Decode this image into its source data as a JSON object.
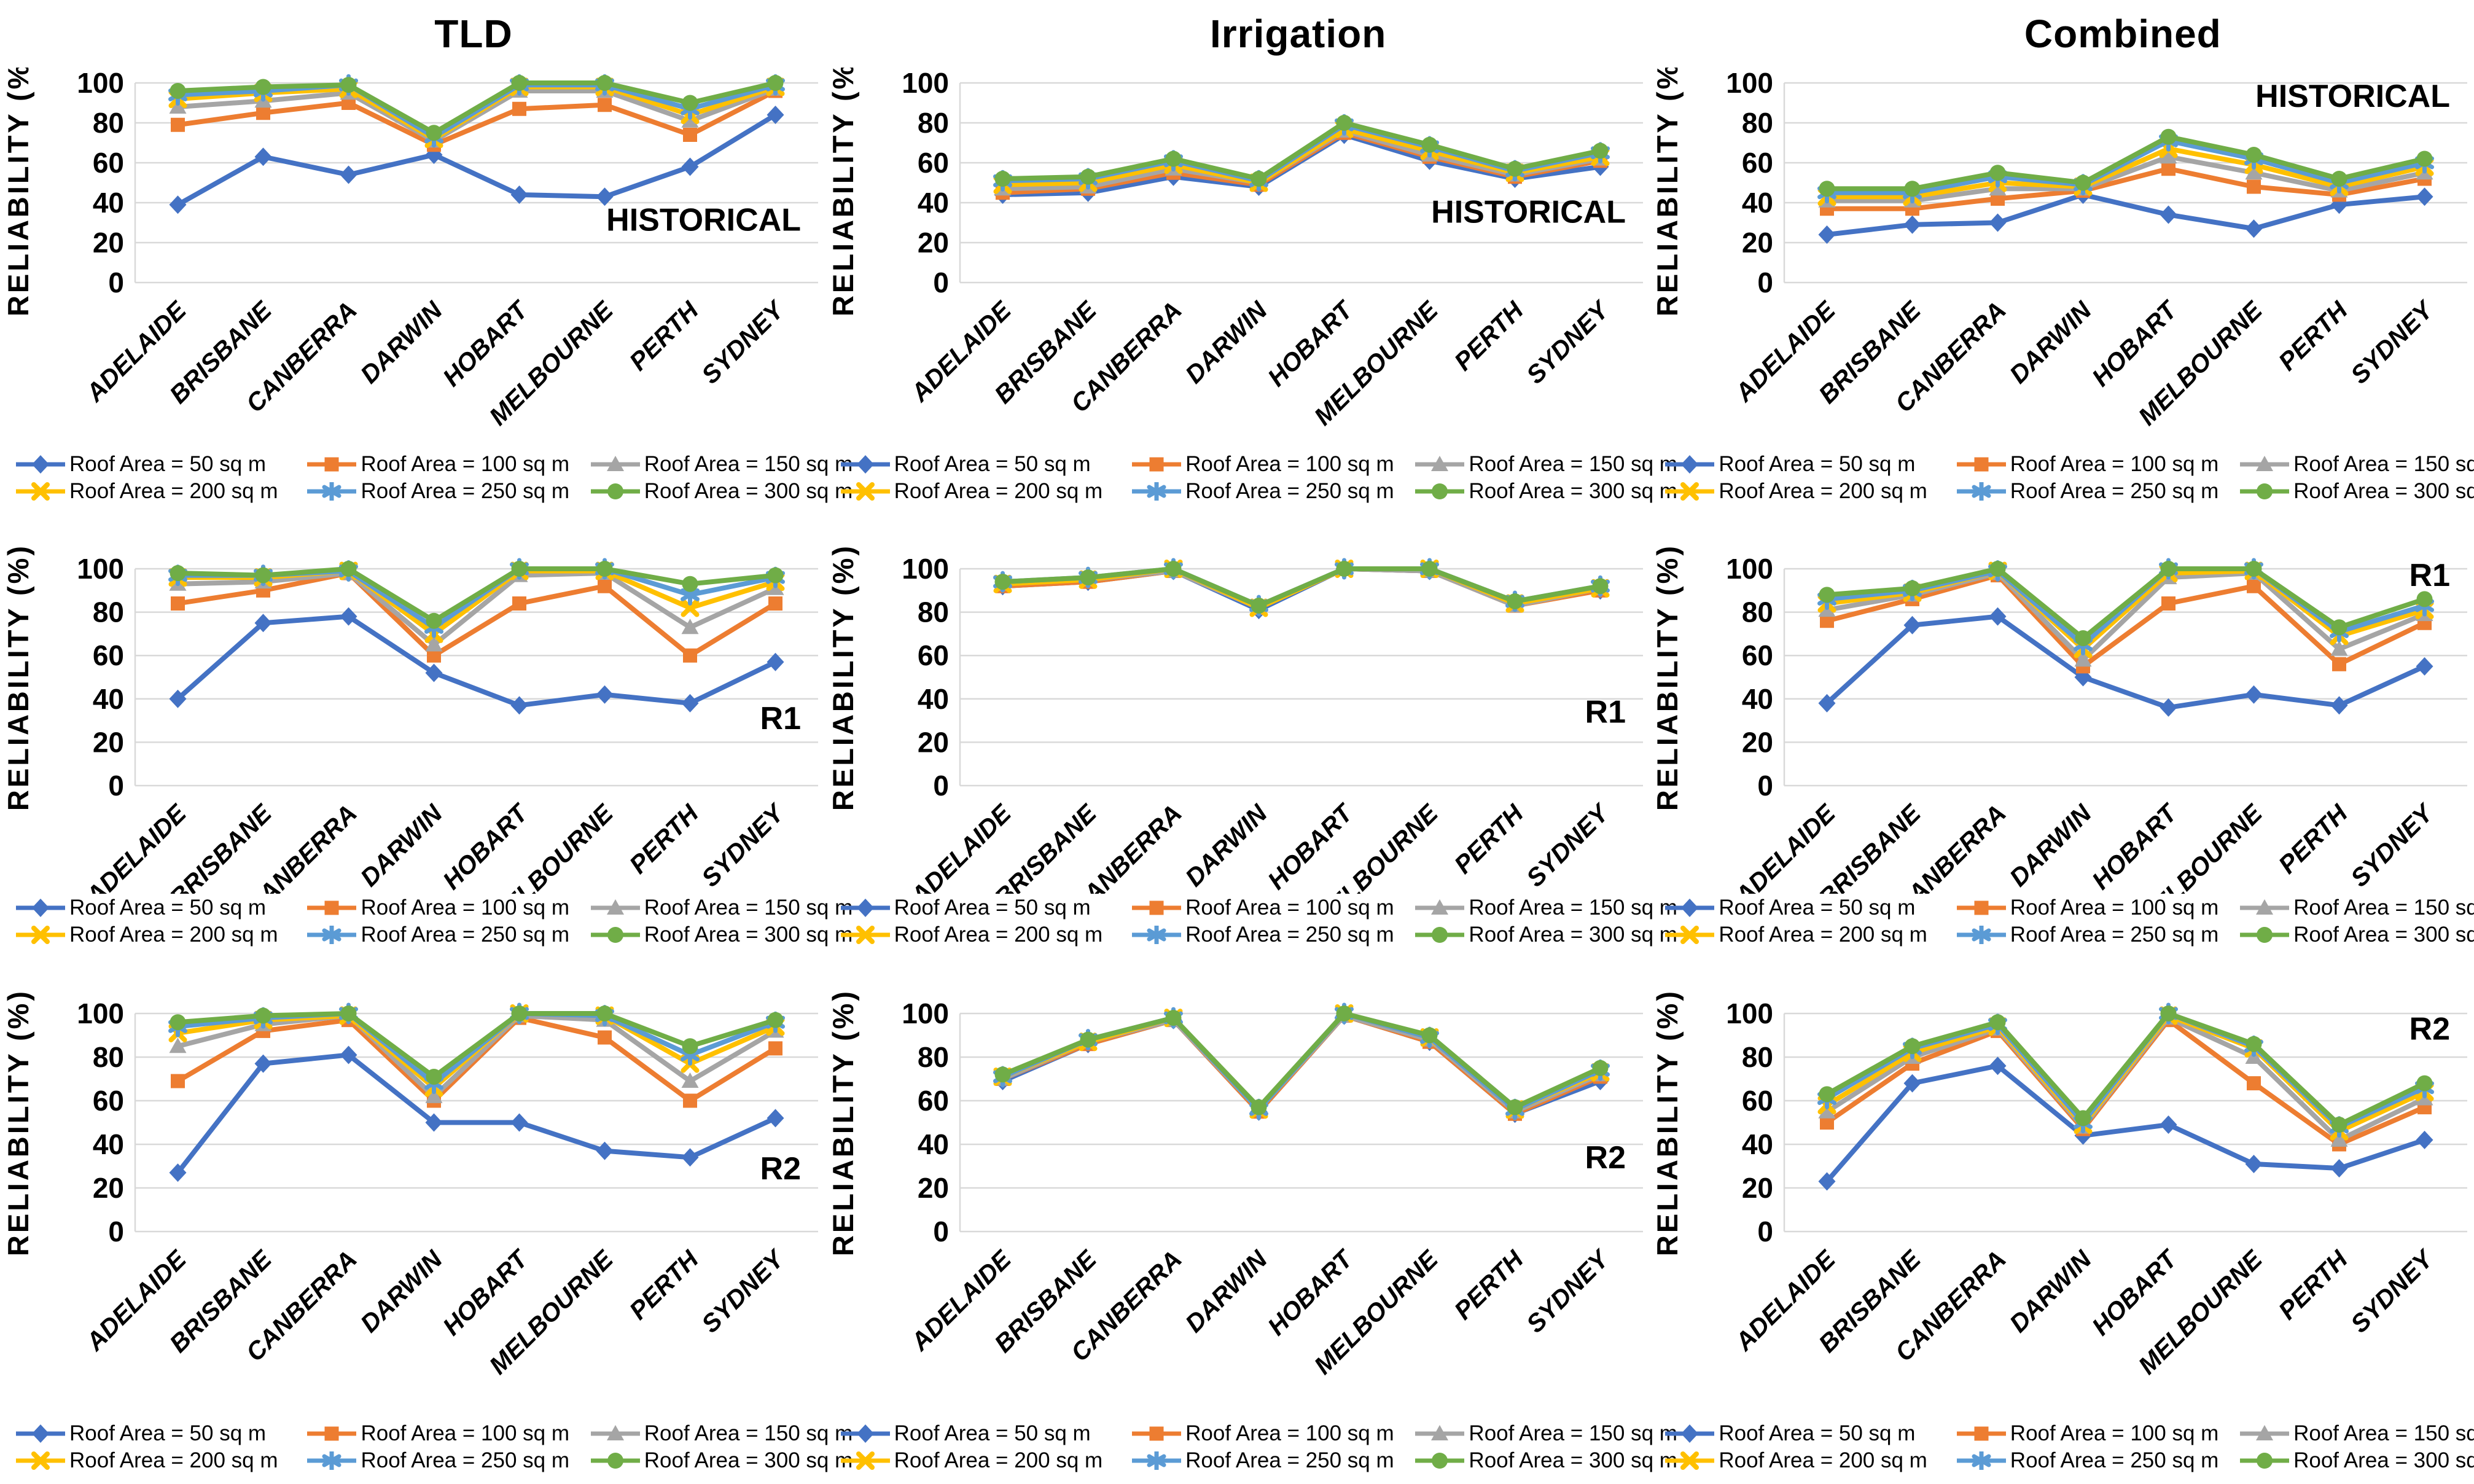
{
  "figure": {
    "column_titles": [
      "TLD",
      "Irrigation",
      "Combined"
    ],
    "scenario_labels": [
      "HISTORICAL",
      "R1",
      "R2"
    ]
  },
  "ylabel": "RELIABILITY (%)",
  "yticks": [
    0,
    20,
    40,
    60,
    80,
    100
  ],
  "categories": [
    "ADELAIDE",
    "BRISBANE",
    "CANBERRA",
    "DARWIN",
    "HOBART",
    "MELBOURNE",
    "PERTH",
    "SYDNEY"
  ],
  "legend": [
    {
      "label": "Roof Area = 50 sq m",
      "color": "#4472C4",
      "marker": "diamond"
    },
    {
      "label": "Roof Area = 100 sq m",
      "color": "#ED7D31",
      "marker": "square"
    },
    {
      "label": "Roof Area = 150 sq m",
      "color": "#A5A5A5",
      "marker": "triangle"
    },
    {
      "label": "Roof Area = 200 sq m",
      "color": "#FFC000",
      "marker": "x"
    },
    {
      "label": "Roof Area = 250 sq m",
      "color": "#5B9BD5",
      "marker": "asterisk"
    },
    {
      "label": "Roof Area = 300 sq m",
      "color": "#70AD47",
      "marker": "circle"
    }
  ],
  "grid_color": "#D9D9D9",
  "chart_data": [
    {
      "type": "line",
      "title": "TLD",
      "annotation": "HISTORICAL",
      "annotation_y": 26,
      "xlabel": "",
      "ylabel": "RELIABILITY (%)",
      "ylim": [
        0,
        100
      ],
      "grid": true,
      "series": [
        {
          "name": "Roof Area = 50 sq m",
          "values": [
            39,
            63,
            54,
            64,
            44,
            43,
            58,
            84
          ]
        },
        {
          "name": "Roof Area = 100 sq m",
          "values": [
            79,
            85,
            90,
            69,
            87,
            89,
            74,
            96
          ]
        },
        {
          "name": "Roof Area = 150 sq m",
          "values": [
            88,
            91,
            95,
            71,
            96,
            96,
            81,
            97
          ]
        },
        {
          "name": "Roof Area = 200 sq m",
          "values": [
            92,
            95,
            97,
            72,
            98,
            98,
            84,
            98
          ]
        },
        {
          "name": "Roof Area = 250 sq m",
          "values": [
            94,
            96,
            99,
            73,
            99,
            99,
            87,
            99
          ]
        },
        {
          "name": "Roof Area = 300 sq m",
          "values": [
            96,
            98,
            99,
            75,
            100,
            100,
            90,
            100
          ]
        }
      ]
    },
    {
      "type": "line",
      "title": "Irrigation",
      "annotation": "HISTORICAL",
      "annotation_y": 30,
      "xlabel": "",
      "ylabel": "RELIABILITY (%)",
      "ylim": [
        0,
        100
      ],
      "grid": true,
      "series": [
        {
          "name": "Roof Area = 50 sq m",
          "values": [
            44,
            45,
            53,
            48,
            74,
            61,
            52,
            58
          ]
        },
        {
          "name": "Roof Area = 100 sq m",
          "values": [
            45,
            47,
            55,
            49,
            75,
            63,
            53,
            61
          ]
        },
        {
          "name": "Roof Area = 150 sq m",
          "values": [
            47,
            48,
            57,
            50,
            76,
            64,
            54,
            62
          ]
        },
        {
          "name": "Roof Area = 200 sq m",
          "values": [
            49,
            50,
            59,
            50,
            77,
            66,
            55,
            63
          ]
        },
        {
          "name": "Roof Area = 250 sq m",
          "values": [
            51,
            52,
            61,
            51,
            79,
            68,
            56,
            65
          ]
        },
        {
          "name": "Roof Area = 300 sq m",
          "values": [
            52,
            53,
            62,
            52,
            80,
            69,
            57,
            66
          ]
        }
      ]
    },
    {
      "type": "line",
      "title": "Combined",
      "annotation": "HISTORICAL",
      "annotation_y": 88,
      "xlabel": "",
      "ylabel": "RELIABILITY (%)",
      "ylim": [
        0,
        100
      ],
      "grid": true,
      "series": [
        {
          "name": "Roof Area = 50 sq m",
          "values": [
            24,
            29,
            30,
            44,
            34,
            27,
            39,
            43
          ]
        },
        {
          "name": "Roof Area = 100 sq m",
          "values": [
            37,
            37,
            42,
            46,
            57,
            48,
            44,
            52
          ]
        },
        {
          "name": "Roof Area = 150 sq m",
          "values": [
            41,
            41,
            47,
            47,
            63,
            55,
            46,
            55
          ]
        },
        {
          "name": "Roof Area = 200 sq m",
          "values": [
            43,
            43,
            50,
            48,
            67,
            59,
            48,
            58
          ]
        },
        {
          "name": "Roof Area = 250 sq m",
          "values": [
            45,
            45,
            53,
            49,
            71,
            62,
            50,
            60
          ]
        },
        {
          "name": "Roof Area = 300 sq m",
          "values": [
            47,
            47,
            55,
            50,
            73,
            64,
            52,
            62
          ]
        }
      ]
    },
    {
      "type": "line",
      "title": "",
      "annotation": "R1",
      "annotation_y": 26,
      "xlabel": "",
      "ylabel": "RELIABILITY (%)",
      "ylim": [
        0,
        100
      ],
      "grid": true,
      "series": [
        {
          "name": "Roof Area = 50 sq m",
          "values": [
            40,
            75,
            78,
            52,
            37,
            42,
            38,
            57
          ]
        },
        {
          "name": "Roof Area = 100 sq m",
          "values": [
            84,
            90,
            98,
            60,
            84,
            92,
            60,
            84
          ]
        },
        {
          "name": "Roof Area = 150 sq m",
          "values": [
            93,
            94,
            98,
            65,
            97,
            98,
            73,
            91
          ]
        },
        {
          "name": "Roof Area = 200 sq m",
          "values": [
            96,
            96,
            99,
            70,
            99,
            99,
            82,
            94
          ]
        },
        {
          "name": "Roof Area = 250 sq m",
          "values": [
            97,
            97,
            99,
            73,
            100,
            100,
            88,
            96
          ]
        },
        {
          "name": "Roof Area = 300 sq m",
          "values": [
            98,
            97,
            100,
            76,
            100,
            100,
            93,
            97
          ]
        }
      ]
    },
    {
      "type": "line",
      "title": "",
      "annotation": "R1",
      "annotation_y": 29,
      "xlabel": "",
      "ylabel": "RELIABILITY (%)",
      "ylim": [
        0,
        100
      ],
      "grid": true,
      "series": [
        {
          "name": "Roof Area = 50 sq m",
          "values": [
            92,
            94,
            99,
            81,
            100,
            99,
            84,
            90
          ]
        },
        {
          "name": "Roof Area = 100 sq m",
          "values": [
            92,
            94,
            99,
            82,
            100,
            99,
            83,
            90
          ]
        },
        {
          "name": "Roof Area = 150 sq m",
          "values": [
            93,
            95,
            99,
            82,
            100,
            99,
            83,
            91
          ]
        },
        {
          "name": "Roof Area = 200 sq m",
          "values": [
            93,
            95,
            100,
            82,
            100,
            100,
            84,
            91
          ]
        },
        {
          "name": "Roof Area = 250 sq m",
          "values": [
            94,
            96,
            100,
            83,
            100,
            100,
            85,
            92
          ]
        },
        {
          "name": "Roof Area = 300 sq m",
          "values": [
            94,
            96,
            100,
            83,
            100,
            100,
            85,
            92
          ]
        }
      ]
    },
    {
      "type": "line",
      "title": "",
      "annotation": "R1",
      "annotation_y": 92,
      "xlabel": "",
      "ylabel": "RELIABILITY (%)",
      "ylim": [
        0,
        100
      ],
      "grid": true,
      "series": [
        {
          "name": "Roof Area = 50 sq m",
          "values": [
            38,
            74,
            78,
            50,
            36,
            42,
            37,
            55
          ]
        },
        {
          "name": "Roof Area = 100 sq m",
          "values": [
            76,
            86,
            97,
            55,
            84,
            92,
            56,
            75
          ]
        },
        {
          "name": "Roof Area = 150 sq m",
          "values": [
            81,
            88,
            98,
            58,
            96,
            98,
            63,
            79
          ]
        },
        {
          "name": "Roof Area = 200 sq m",
          "values": [
            84,
            89,
            99,
            63,
            98,
            99,
            69,
            81
          ]
        },
        {
          "name": "Roof Area = 250 sq m",
          "values": [
            86,
            90,
            99,
            65,
            100,
            100,
            71,
            83
          ]
        },
        {
          "name": "Roof Area = 300 sq m",
          "values": [
            88,
            91,
            100,
            68,
            100,
            100,
            73,
            86
          ]
        }
      ]
    },
    {
      "type": "line",
      "title": "",
      "annotation": "R2",
      "annotation_y": 24,
      "xlabel": "",
      "ylabel": "RELIABILITY (%)",
      "ylim": [
        0,
        100
      ],
      "grid": true,
      "series": [
        {
          "name": "Roof Area = 50 sq m",
          "values": [
            27,
            77,
            81,
            50,
            50,
            37,
            34,
            52
          ]
        },
        {
          "name": "Roof Area = 100 sq m",
          "values": [
            69,
            92,
            97,
            60,
            98,
            89,
            60,
            84
          ]
        },
        {
          "name": "Roof Area = 150 sq m",
          "values": [
            85,
            95,
            99,
            62,
            99,
            97,
            69,
            92
          ]
        },
        {
          "name": "Roof Area = 200 sq m",
          "values": [
            91,
            97,
            99,
            66,
            100,
            99,
            77,
            94
          ]
        },
        {
          "name": "Roof Area = 250 sq m",
          "values": [
            94,
            98,
            100,
            68,
            100,
            99,
            81,
            96
          ]
        },
        {
          "name": "Roof Area = 300 sq m",
          "values": [
            96,
            99,
            100,
            71,
            100,
            100,
            85,
            97
          ]
        }
      ]
    },
    {
      "type": "line",
      "title": "",
      "annotation": "R2",
      "annotation_y": 29,
      "xlabel": "",
      "ylabel": "RELIABILITY (%)",
      "ylim": [
        0,
        100
      ],
      "grid": true,
      "series": [
        {
          "name": "Roof Area = 50 sq m",
          "values": [
            69,
            86,
            97,
            55,
            99,
            87,
            54,
            69
          ]
        },
        {
          "name": "Roof Area = 100 sq m",
          "values": [
            70,
            86,
            97,
            55,
            99,
            87,
            54,
            71
          ]
        },
        {
          "name": "Roof Area = 150 sq m",
          "values": [
            70,
            87,
            97,
            56,
            99,
            88,
            55,
            72
          ]
        },
        {
          "name": "Roof Area = 200 sq m",
          "values": [
            71,
            87,
            98,
            56,
            100,
            89,
            56,
            73
          ]
        },
        {
          "name": "Roof Area = 250 sq m",
          "values": [
            71,
            88,
            98,
            56,
            100,
            89,
            56,
            74
          ]
        },
        {
          "name": "Roof Area = 300 sq m",
          "values": [
            72,
            88,
            98,
            57,
            100,
            90,
            57,
            75
          ]
        }
      ]
    },
    {
      "type": "line",
      "title": "",
      "annotation": "R2",
      "annotation_y": 88,
      "xlabel": "",
      "ylabel": "RELIABILITY (%)",
      "ylim": [
        0,
        100
      ],
      "grid": true,
      "series": [
        {
          "name": "Roof Area = 50 sq m",
          "values": [
            23,
            68,
            76,
            44,
            49,
            31,
            29,
            42
          ]
        },
        {
          "name": "Roof Area = 100 sq m",
          "values": [
            50,
            77,
            92,
            47,
            97,
            68,
            40,
            57
          ]
        },
        {
          "name": "Roof Area = 150 sq m",
          "values": [
            55,
            80,
            93,
            48,
            98,
            80,
            42,
            61
          ]
        },
        {
          "name": "Roof Area = 200 sq m",
          "values": [
            58,
            82,
            94,
            49,
            99,
            84,
            46,
            64
          ]
        },
        {
          "name": "Roof Area = 250 sq m",
          "values": [
            61,
            84,
            95,
            50,
            100,
            85,
            48,
            66
          ]
        },
        {
          "name": "Roof Area = 300 sq m",
          "values": [
            63,
            85,
            96,
            52,
            100,
            86,
            49,
            68
          ]
        }
      ]
    }
  ]
}
